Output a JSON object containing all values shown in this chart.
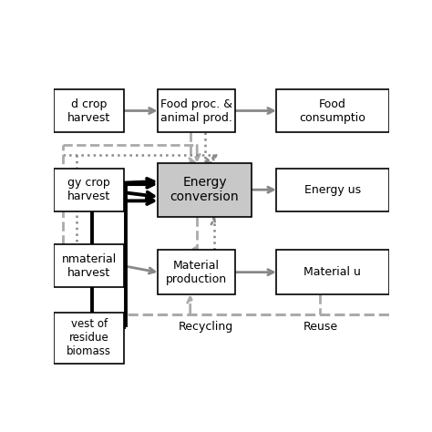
{
  "figsize": [
    4.74,
    4.74
  ],
  "dpi": 100,
  "xlim": [
    -0.05,
    1.05
  ],
  "ylim": [
    -0.18,
    1.02
  ],
  "gray": "#888888",
  "lgray": "#aaaaaa",
  "black": "#000000",
  "boxes": {
    "fh": [
      -0.05,
      0.73,
      0.23,
      0.155
    ],
    "fp": [
      0.29,
      0.73,
      0.255,
      0.155
    ],
    "fc": [
      0.68,
      0.73,
      0.37,
      0.155
    ],
    "eh": [
      -0.05,
      0.445,
      0.23,
      0.155
    ],
    "ec": [
      0.29,
      0.425,
      0.31,
      0.195
    ],
    "eu": [
      0.68,
      0.445,
      0.37,
      0.155
    ],
    "mh": [
      -0.05,
      0.17,
      0.23,
      0.155
    ],
    "mp": [
      0.29,
      0.145,
      0.255,
      0.16
    ],
    "mu": [
      0.68,
      0.145,
      0.37,
      0.16
    ],
    "rh": [
      -0.05,
      -0.105,
      0.23,
      0.185
    ]
  },
  "box_fills": {
    "fh": "#ffffff",
    "fp": "#ffffff",
    "fc": "#ffffff",
    "eh": "#ffffff",
    "ec": "#c8c8c8",
    "eu": "#ffffff",
    "mh": "#ffffff",
    "mp": "#ffffff",
    "mu": "#ffffff",
    "rh": "#ffffff"
  },
  "labels": {
    "fh": "d crop\nharvest",
    "fp": "Food proc. &\nanimal prod.",
    "fc": "Food\nconsumptio",
    "eh": "gy crop\nharvest",
    "ec": "Energy\nconversion",
    "eu": "Energy us",
    "mh": "nmaterial\nharvest",
    "mp": "Material\nproduction",
    "mu": "Material u",
    "rh": "vest of\nresidue\nbiomass"
  },
  "fontsizes": {
    "fh": 9,
    "fp": 9,
    "fc": 9,
    "eh": 9,
    "ec": 10,
    "eu": 9,
    "mh": 9,
    "mp": 9,
    "mu": 9,
    "rh": 8.5
  }
}
